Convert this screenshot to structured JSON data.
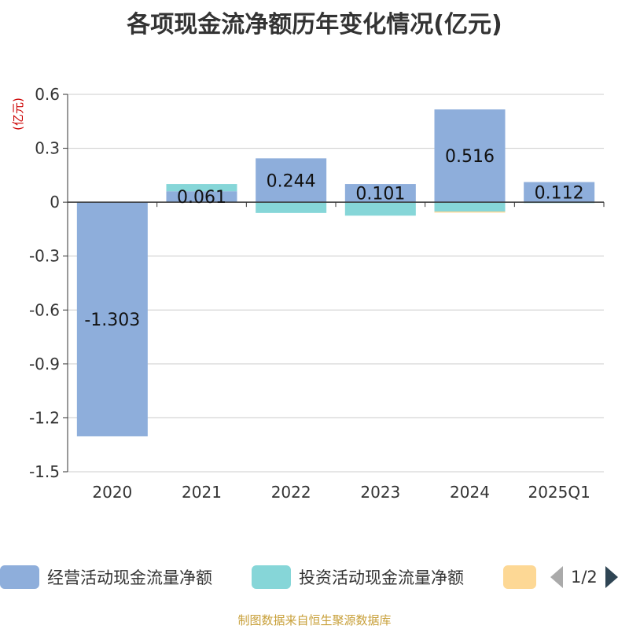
{
  "chart_data": {
    "type": "bar",
    "title": "各项现金流净额历年变化情况(亿元)",
    "ylabel": "(亿元)",
    "categories": [
      "2020",
      "2021",
      "2022",
      "2023",
      "2024",
      "2025Q1"
    ],
    "ylim": [
      -1.5,
      0.6
    ],
    "yticks": [
      "0.6",
      "0.3",
      "0",
      "-0.3",
      "-0.6",
      "-0.9",
      "-1.2",
      "-1.5"
    ],
    "grid": true,
    "legend_position": "bottom",
    "series": [
      {
        "name": "经营活动现金流量净额",
        "color": "#8eaedb",
        "values": [
          -1.303,
          0.061,
          0.244,
          0.101,
          0.516,
          0.112
        ],
        "labels": [
          "-1.303",
          "0.061",
          "0.244",
          "0.101",
          "0.516",
          "0.112"
        ]
      },
      {
        "name": "投资活动现金流量净额",
        "color": "#86d6d8",
        "values": [
          0,
          0.04,
          -0.06,
          -0.075,
          -0.052,
          -0.005
        ]
      },
      {
        "color": "#fdd895",
        "values": [
          0,
          0,
          0,
          0,
          -0.006,
          0
        ]
      }
    ]
  },
  "legend": {
    "item1": "经营活动现金流量净额",
    "item2": "投资活动现金流量净额",
    "page": "1/2"
  },
  "source": "制图数据来自恒生聚源数据库"
}
